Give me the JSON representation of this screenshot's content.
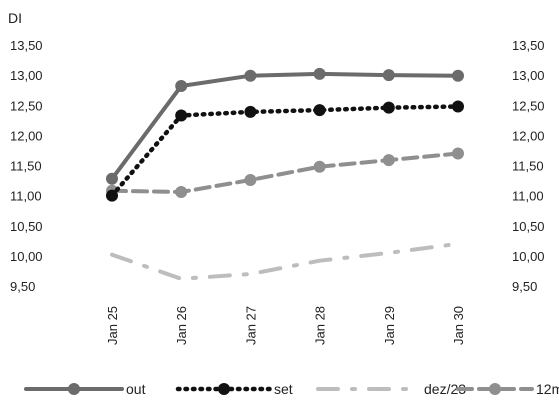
{
  "chart_data": {
    "type": "line",
    "title": "",
    "ylabel": "DI",
    "categories": [
      "Jan 25",
      "Jan 26",
      "Jan 27",
      "Jan 28",
      "Jan 29",
      "Jan 30"
    ],
    "ylim": [
      9.5,
      13.5
    ],
    "yticks": [
      "13,50",
      "13,00",
      "12,50",
      "12,00",
      "11,50",
      "11,00",
      "10,50",
      "10,00",
      "9,50"
    ],
    "secondary_yticks": [
      "13,50",
      "13,00",
      "12,50",
      "12,00",
      "11,50",
      "11,00",
      "10,50",
      "10,00",
      "9,50"
    ],
    "grid": false,
    "legend_position": "bottom",
    "series": [
      {
        "name": "out",
        "values": [
          11.28,
          12.82,
          12.99,
          13.02,
          13.0,
          12.99
        ],
        "color": "#6b6b6b",
        "style": "solid",
        "marker": true
      },
      {
        "name": "set",
        "values": [
          11.0,
          12.33,
          12.39,
          12.42,
          12.46,
          12.48
        ],
        "color": "#111111",
        "style": "dotted",
        "marker": true
      },
      {
        "name": "dez/23",
        "values": [
          10.02,
          9.62,
          9.7,
          9.92,
          10.05,
          10.2
        ],
        "color": "#bdbdbd",
        "style": "dashdot",
        "marker": false
      },
      {
        "name": "12m",
        "values": [
          11.08,
          11.06,
          11.26,
          11.48,
          11.59,
          11.7
        ],
        "color": "#8f8f8f",
        "style": "dashed",
        "marker": true
      }
    ]
  }
}
